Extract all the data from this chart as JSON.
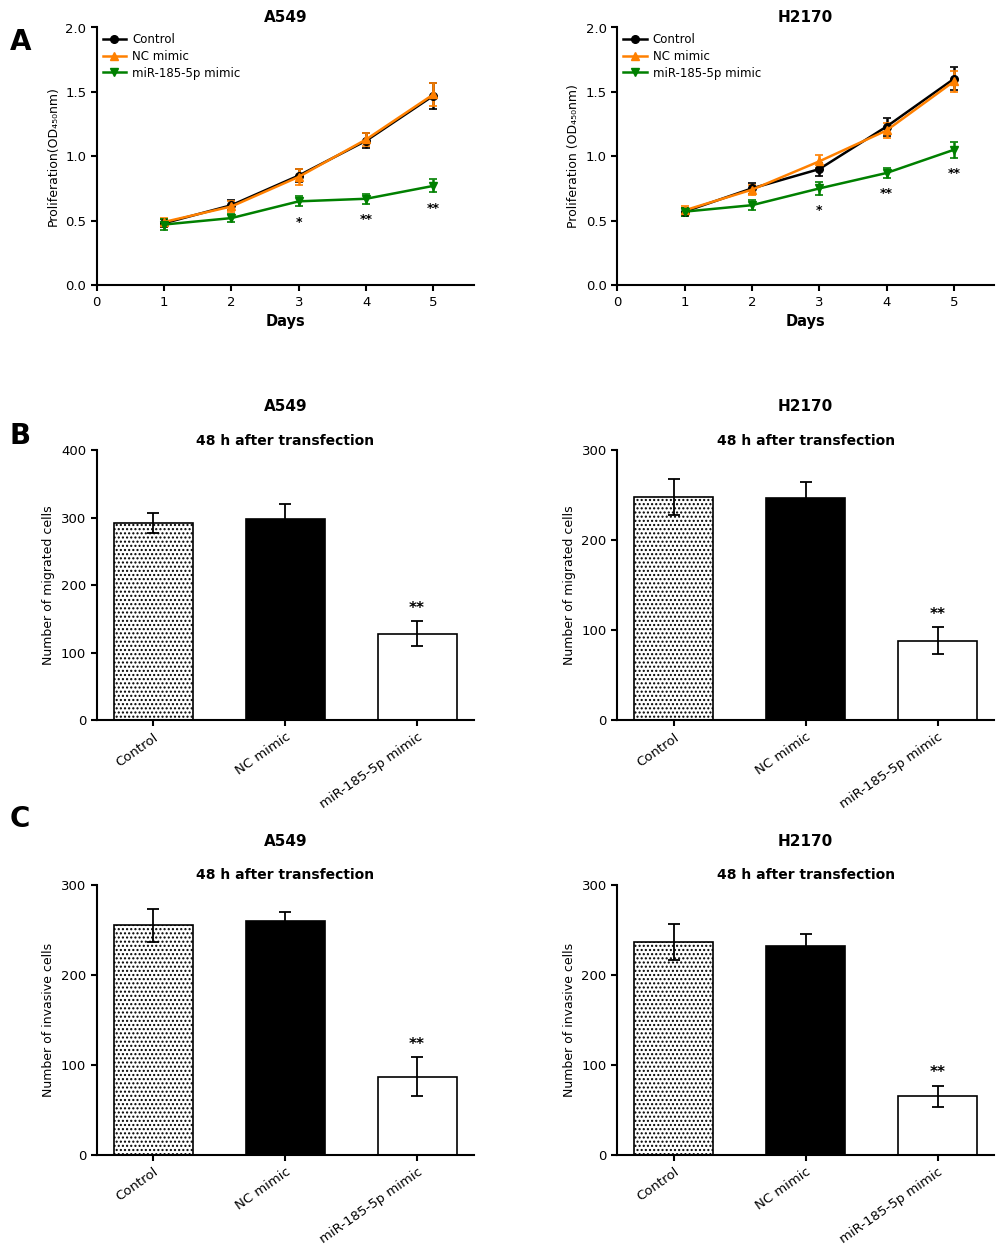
{
  "panel_A": {
    "A549": {
      "days": [
        1,
        2,
        3,
        4,
        5
      ],
      "control_mean": [
        0.48,
        0.62,
        0.85,
        1.12,
        1.47
      ],
      "control_err": [
        0.03,
        0.04,
        0.05,
        0.06,
        0.1
      ],
      "nc_mean": [
        0.49,
        0.61,
        0.84,
        1.13,
        1.48
      ],
      "nc_err": [
        0.03,
        0.04,
        0.06,
        0.05,
        0.09
      ],
      "mir_mean": [
        0.47,
        0.52,
        0.65,
        0.67,
        0.77
      ],
      "mir_err": [
        0.04,
        0.03,
        0.04,
        0.04,
        0.05
      ],
      "sig_days": [
        3,
        4,
        5
      ],
      "sig_labels": [
        "*",
        "**",
        "**"
      ],
      "ylim": [
        0.0,
        2.0
      ],
      "yticks": [
        0.0,
        0.5,
        1.0,
        1.5,
        2.0
      ],
      "title": "A549",
      "xlabel": "Days",
      "ylabel": "Proliferation(OD₄₅₀nm)"
    },
    "H2170": {
      "days": [
        1,
        2,
        3,
        4,
        5
      ],
      "control_mean": [
        0.57,
        0.75,
        0.9,
        1.23,
        1.6
      ],
      "control_err": [
        0.03,
        0.04,
        0.05,
        0.07,
        0.09
      ],
      "nc_mean": [
        0.58,
        0.74,
        0.96,
        1.2,
        1.58
      ],
      "nc_err": [
        0.03,
        0.04,
        0.05,
        0.06,
        0.08
      ],
      "mir_mean": [
        0.57,
        0.62,
        0.75,
        0.87,
        1.05
      ],
      "mir_err": [
        0.03,
        0.04,
        0.05,
        0.04,
        0.06
      ],
      "sig_days": [
        3,
        4,
        5
      ],
      "sig_labels": [
        "*",
        "**",
        "**"
      ],
      "ylim": [
        0.0,
        2.0
      ],
      "yticks": [
        0.0,
        0.5,
        1.0,
        1.5,
        2.0
      ],
      "title": "H2170",
      "xlabel": "Days",
      "ylabel": "Proliferation (OD₄₅₀nm)"
    }
  },
  "panel_B": {
    "A549": {
      "categories": [
        "Control",
        "NC mimic",
        "miR-185-5p mimic"
      ],
      "means": [
        292,
        298,
        128
      ],
      "errs": [
        15,
        22,
        18
      ],
      "colors": [
        "dotted",
        "black",
        "white"
      ],
      "sig_labels": [
        "",
        "",
        "**"
      ],
      "ylim": [
        0,
        400
      ],
      "yticks": [
        0,
        100,
        200,
        300,
        400
      ],
      "title": "A549",
      "subtitle": "48 h after transfection",
      "ylabel": "Number of migrated cells"
    },
    "H2170": {
      "categories": [
        "Control",
        "NC mimic",
        "miR-185-5p mimic"
      ],
      "means": [
        248,
        247,
        88
      ],
      "errs": [
        20,
        18,
        15
      ],
      "colors": [
        "dotted",
        "black",
        "white"
      ],
      "sig_labels": [
        "",
        "",
        "**"
      ],
      "ylim": [
        0,
        300
      ],
      "yticks": [
        0,
        100,
        200,
        300
      ],
      "title": "H2170",
      "subtitle": "48 h after transfection",
      "ylabel": "Number of migrated cells"
    }
  },
  "panel_C": {
    "A549": {
      "categories": [
        "Control",
        "NC mimic",
        "miR-185-5p mimic"
      ],
      "means": [
        255,
        260,
        87
      ],
      "errs": [
        18,
        10,
        22
      ],
      "colors": [
        "dotted",
        "black",
        "white"
      ],
      "sig_labels": [
        "",
        "",
        "**"
      ],
      "ylim": [
        0,
        300
      ],
      "yticks": [
        0,
        100,
        200,
        300
      ],
      "title": "A549",
      "subtitle": "48 h after transfection",
      "ylabel": "Number of invasive cells"
    },
    "H2170": {
      "categories": [
        "Control",
        "NC mimic",
        "miR-185-5p mimic"
      ],
      "means": [
        237,
        232,
        65
      ],
      "errs": [
        20,
        14,
        12
      ],
      "colors": [
        "dotted",
        "black",
        "white"
      ],
      "sig_labels": [
        "",
        "",
        "**"
      ],
      "ylim": [
        0,
        300
      ],
      "yticks": [
        0,
        100,
        200,
        300
      ],
      "title": "H2170",
      "subtitle": "48 h after transfection",
      "ylabel": "Number of invasive cells"
    }
  },
  "legend": {
    "control_color": "#000000",
    "nc_color": "#FF8000",
    "mir_color": "#008000",
    "control_label": "Control",
    "nc_label": "NC mimic",
    "mir_label": "miR-185-5p mimic"
  },
  "panel_labels": [
    "A",
    "B",
    "C"
  ],
  "background_color": "#ffffff"
}
